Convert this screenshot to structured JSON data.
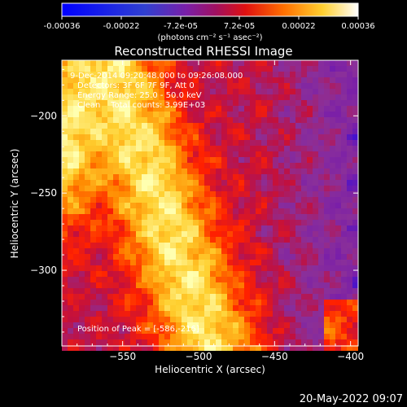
{
  "colorbar": {
    "ticks": [
      "-0.00036",
      "-0.00022",
      "-7.2e-05",
      "7.2e-05",
      "0.00022",
      "0.00036"
    ],
    "units_label": "(photons cm⁻² s⁻¹ asec⁻²)",
    "range": [
      -0.00036,
      0.00036
    ]
  },
  "annotations": {
    "time_range": "9-Dec-2014 09:20:48.000 to 09:26:08.000",
    "detectors": "Detectors: 3F 6F 7F 9F, Att 0",
    "energy_range": "Energy Range: 25.0 - 50.0 keV",
    "clean_counts": "Clean    Total counts: 3.99E+03",
    "peak": "Position of Peak = [-586,-216]"
  },
  "footer": {
    "timestamp": "20-May-2022 09:07"
  },
  "chart_data": {
    "type": "heatmap",
    "title": "Reconstructed RHESSI Image",
    "xlabel": "Heliocentric X (arcsec)",
    "ylabel": "Heliocentric Y (arcsec)",
    "xlim": [
      -590,
      -395
    ],
    "ylim": [
      -349,
      -164
    ],
    "xticks": [
      -550,
      -500,
      -450,
      -400
    ],
    "xtick_labels": [
      "−550",
      "−500",
      "−450",
      "−400"
    ],
    "yticks": [
      -200,
      -250,
      -300
    ],
    "ytick_labels": [
      "−200",
      "−250",
      "−300"
    ],
    "colormap": [
      "#0000ff",
      "#7a1fa8",
      "#8a2f9a",
      "#c01040",
      "#ff2000",
      "#ff8800",
      "#ffd030",
      "#ffffb0"
    ],
    "peak_position": [
      -586,
      -216
    ]
  }
}
